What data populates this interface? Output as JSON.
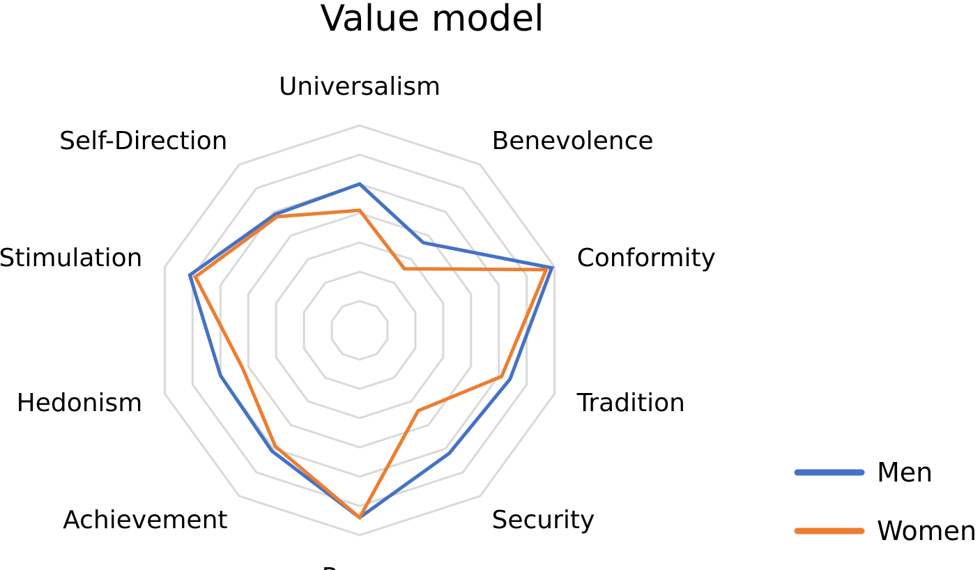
{
  "chart_data": {
    "type": "radar",
    "title": "Value model",
    "categories": [
      "Universalism",
      "Benevolence",
      "Conformity",
      "Tradition",
      "Security",
      "Power",
      "Achievement",
      "Hedonism",
      "Stimulation",
      "Self-Direction"
    ],
    "rlim": [
      0,
      7
    ],
    "grid_levels": [
      1,
      2,
      3,
      4,
      5,
      6,
      7
    ],
    "grid": true,
    "legend_position": "bottom-right",
    "series": [
      {
        "name": "Men",
        "color": "#4472C4",
        "values": [
          5.0,
          3.7,
          6.9,
          5.4,
          5.2,
          6.4,
          5.1,
          5.0,
          6.1,
          4.9
        ]
      },
      {
        "name": "Women",
        "color": "#ED7D31",
        "values": [
          4.1,
          2.6,
          6.7,
          5.1,
          3.4,
          6.4,
          4.9,
          4.2,
          5.9,
          4.8
        ]
      }
    ]
  }
}
